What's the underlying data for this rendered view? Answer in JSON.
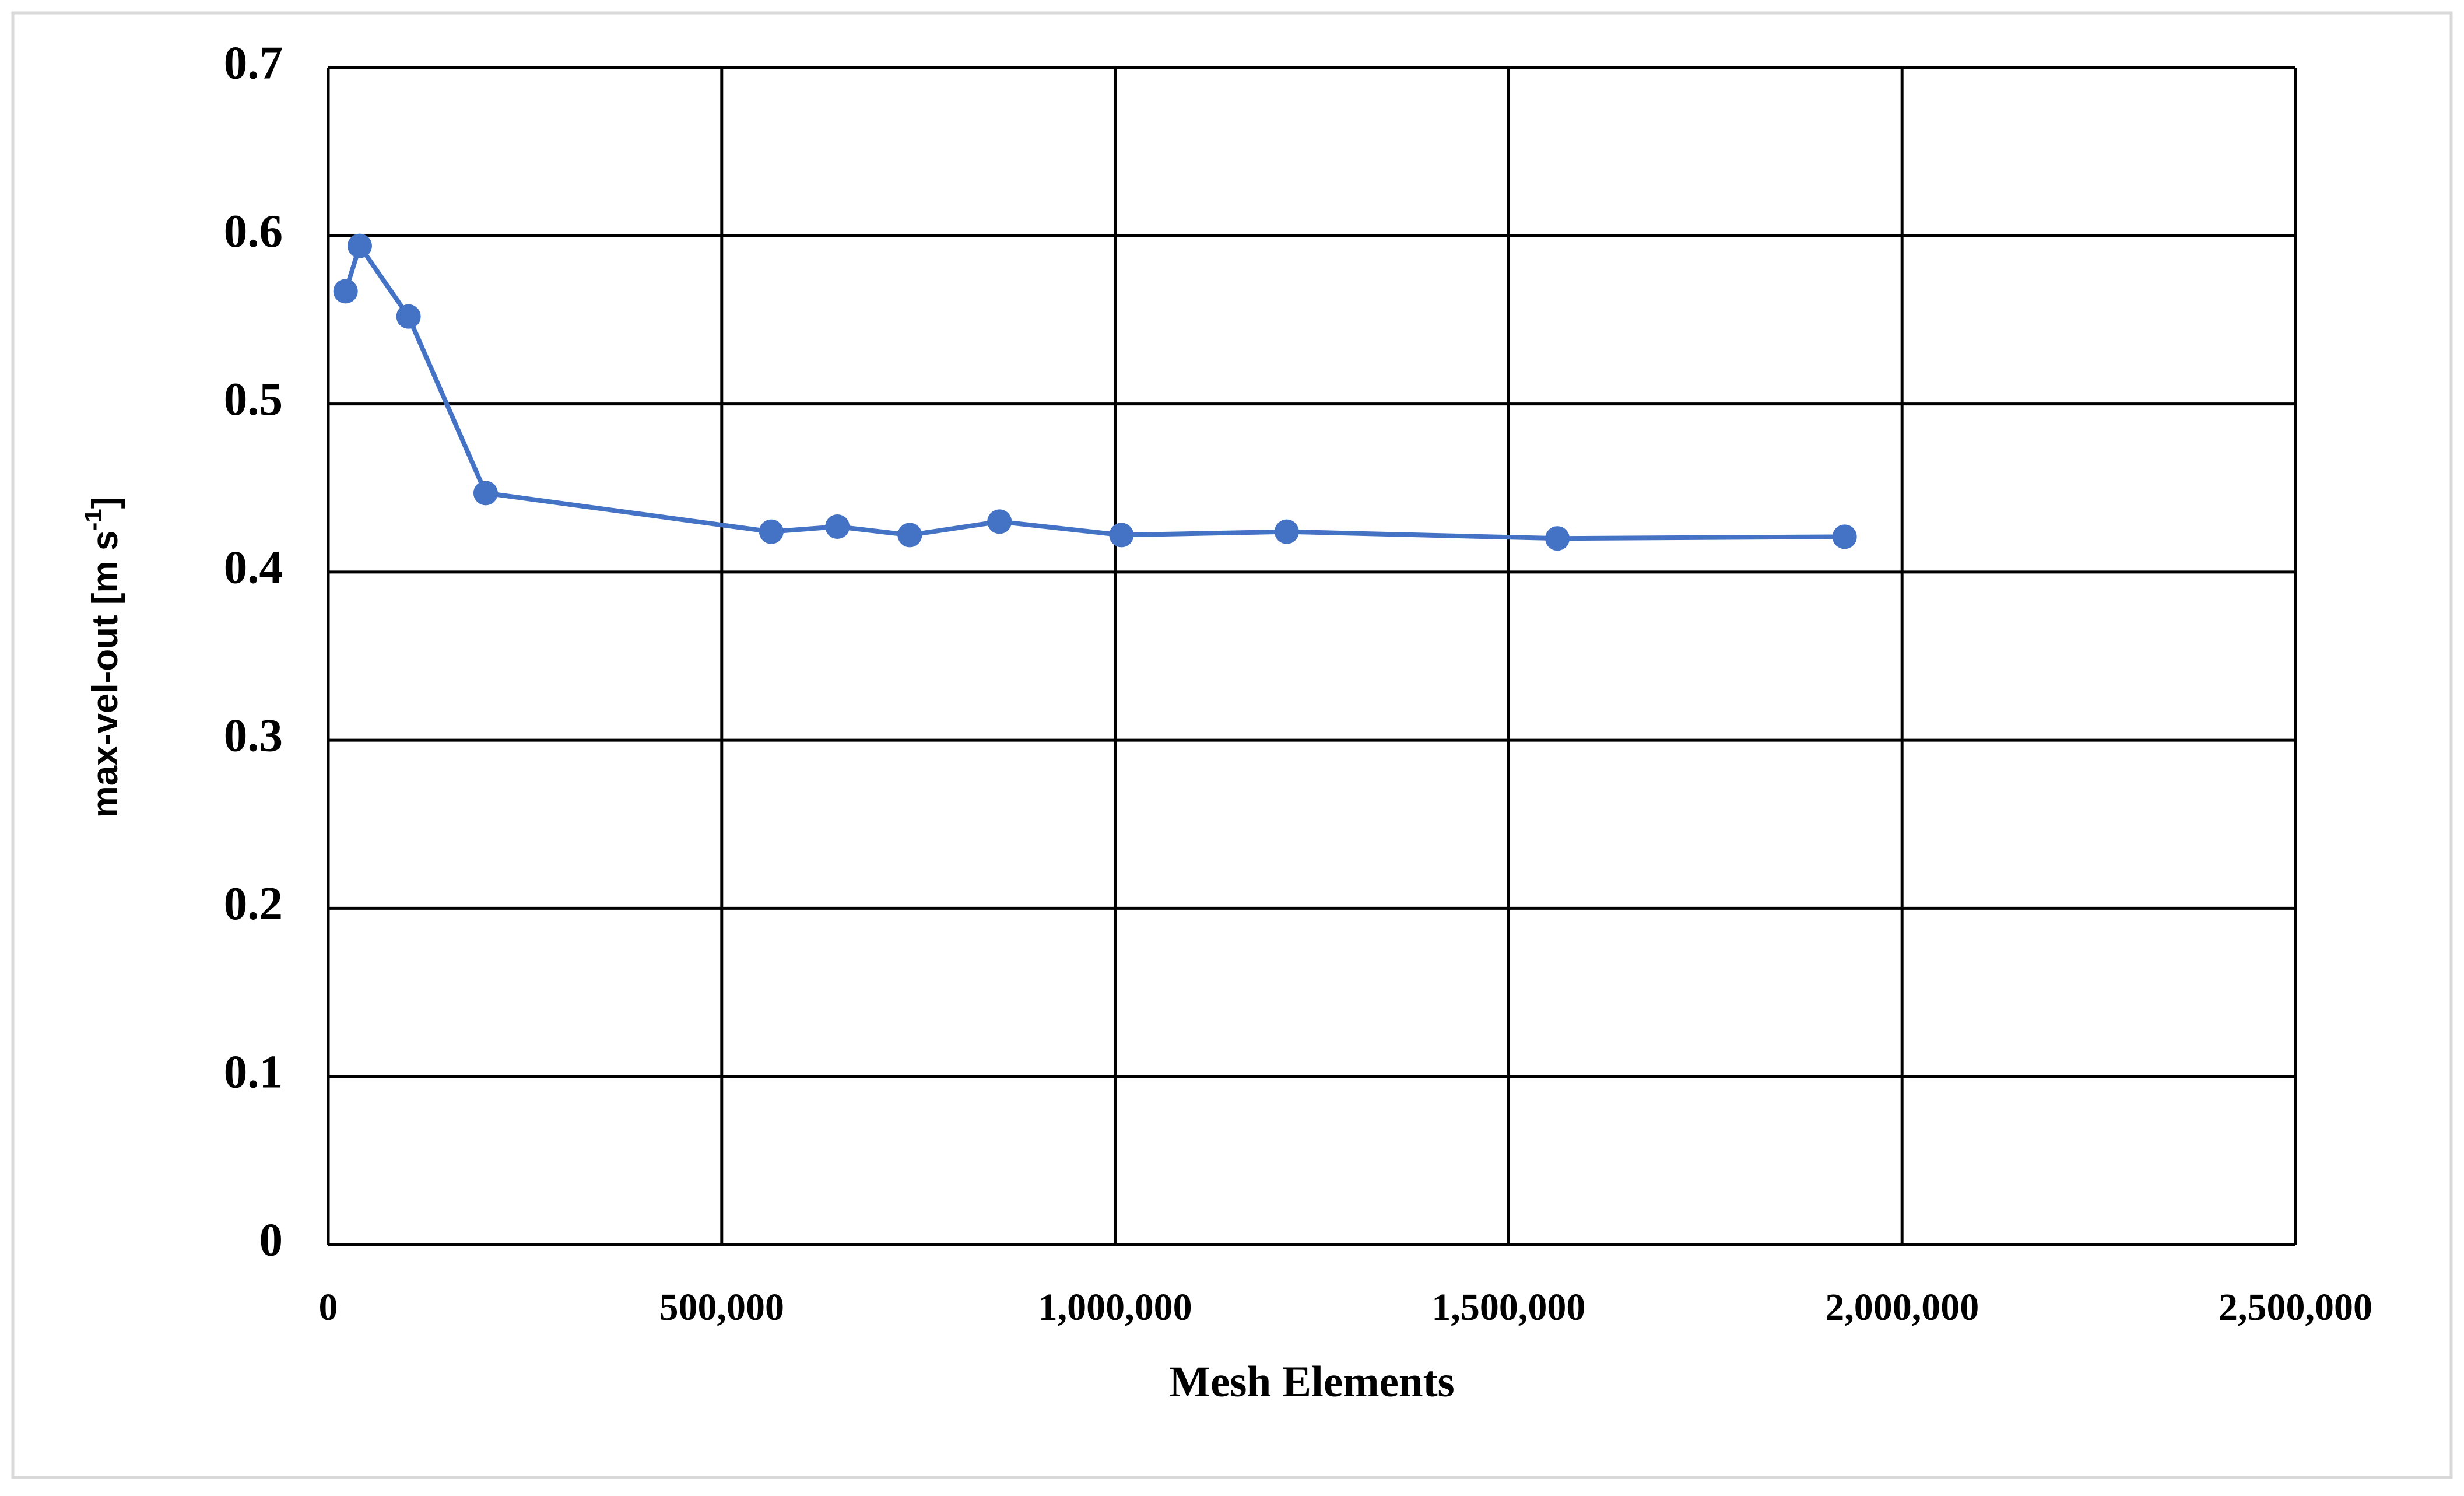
{
  "chart_data": {
    "type": "line",
    "xlabel": "Mesh Elements",
    "ylabel": {
      "base": "max-vel-out [m s",
      "superscript": "-1",
      "close": "]"
    },
    "x": [
      22000,
      40000,
      102000,
      200000,
      563000,
      647000,
      739000,
      853000,
      1008000,
      1218000,
      1562000,
      1927000
    ],
    "series": [
      {
        "color": "#4472c4",
        "values": [
          0.567,
          0.594,
          0.552,
          0.447,
          0.424,
          0.427,
          0.422,
          0.43,
          0.422,
          0.424,
          0.42,
          0.421
        ]
      }
    ],
    "xlim": [
      0,
      2500000
    ],
    "xticks": [
      0,
      {
        "value": 500000,
        "label": "500,000"
      },
      {
        "value": 1000000,
        "label": "1,000,000"
      },
      {
        "value": 1500000,
        "label": "1,500,000"
      },
      {
        "value": 2000000,
        "label": "2,000,000"
      },
      {
        "value": 2500000,
        "label": "2,500,000"
      }
    ],
    "ylim": [
      0,
      0.7
    ],
    "yticks": [
      0,
      0.1,
      0.2,
      0.3,
      0.4,
      0.5,
      0.6,
      0.7
    ],
    "grid": true
  }
}
